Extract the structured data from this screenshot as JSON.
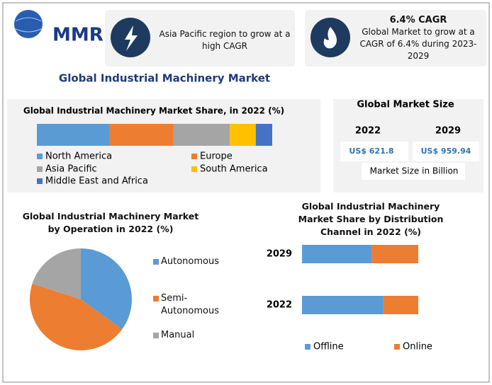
{
  "header": {
    "logo": "MMR",
    "highlight_1": "Asia Pacific region to grow at a high CAGR",
    "highlight_2": {
      "title": "6.4% CAGR",
      "text": "Global Market to grow at a CAGR of 6.4% during 2023-2029"
    }
  },
  "title": "Global Industrial Machinery Market",
  "market_size": {
    "title": "Global Market Size",
    "years": [
      "2022",
      "2029"
    ],
    "values": [
      "US$ 621.8",
      "US$ 959.94"
    ],
    "unit": "Market Size in Billion"
  },
  "chart_data": [
    {
      "type": "bar",
      "orientation": "horizontal",
      "stacked": true,
      "title": "Global Industrial Machinery Market Share, in 2022 (%)",
      "categories": [
        null
      ],
      "xlim": [
        0,
        100
      ],
      "series": [
        {
          "name": "North America",
          "color": "#5b9bd5",
          "values": [
            31
          ]
        },
        {
          "name": "Europe",
          "color": "#ed7d31",
          "values": [
            27
          ]
        },
        {
          "name": "Asia Pacific",
          "color": "#a5a5a5",
          "values": [
            24
          ]
        },
        {
          "name": "South America",
          "color": "#ffc000",
          "values": [
            11
          ]
        },
        {
          "name": "Middle East and Africa",
          "color": "#4472c4",
          "values": [
            7
          ]
        }
      ]
    },
    {
      "type": "pie",
      "title": "Global Industrial Machinery Market by Operation in 2022 (%)",
      "categories": [
        "Autonomous",
        "Semi-Autonomous",
        "Manual"
      ],
      "values": [
        35,
        45,
        20
      ],
      "colors": [
        "#5b9bd5",
        "#ed7d31",
        "#a5a5a5"
      ]
    },
    {
      "type": "bar",
      "orientation": "horizontal",
      "stacked": true,
      "title": "Global Industrial Machinery Market Share by Distribution Channel in 2022 (%)",
      "categories": [
        "2029",
        "2022"
      ],
      "xlim": [
        0,
        100
      ],
      "series": [
        {
          "name": "Offline",
          "color": "#5b9bd5",
          "values": [
            60,
            70
          ]
        },
        {
          "name": "Online",
          "color": "#ed7d31",
          "values": [
            40,
            30
          ]
        }
      ]
    }
  ]
}
